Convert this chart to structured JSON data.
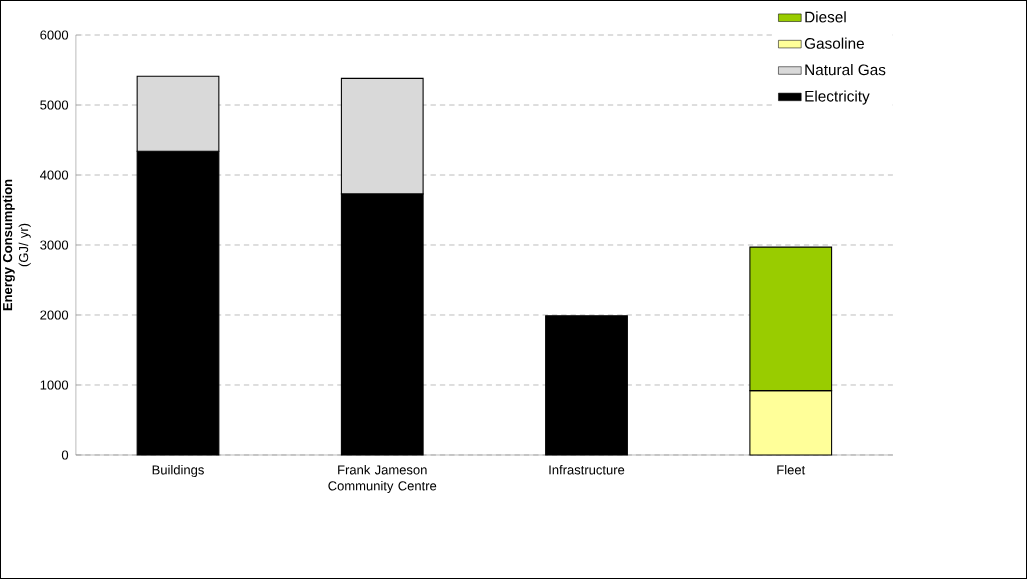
{
  "chart_data": {
    "type": "bar",
    "stacked": true,
    "ylabel": "**Energy Consumption** (GJ/ yr)",
    "categories": [
      "Buildings",
      "Frank Jameson Community Centre",
      "Infrastructure",
      "Fleet"
    ],
    "series": [
      {
        "name": "Electricity",
        "color": "#000000",
        "values": [
          4340,
          3730,
          1990,
          null
        ]
      },
      {
        "name": "Natural Gas",
        "color": "#d9d9d9",
        "values": [
          1070,
          1650,
          null,
          null
        ]
      },
      {
        "name": "Gasoline",
        "color": "#ffff99",
        "values": [
          null,
          null,
          null,
          920
        ]
      },
      {
        "name": "Diesel",
        "color": "#99cc00",
        "values": [
          null,
          null,
          null,
          2050
        ]
      }
    ],
    "ylim": [
      0,
      6000
    ],
    "yticks": [
      0,
      1000,
      2000,
      3000,
      4000,
      5000,
      6000
    ],
    "grid": "y",
    "legend": "top right"
  }
}
